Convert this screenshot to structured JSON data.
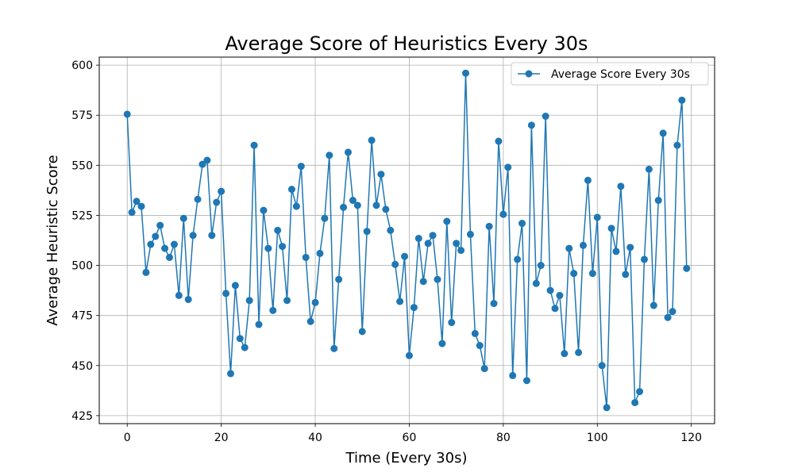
{
  "chart_data": {
    "type": "line",
    "title": "Average Score of Heuristics Every 30s",
    "xlabel": "Time (Every 30s)",
    "ylabel": "Average Heuristic Score",
    "xlim": [
      -5.95,
      124.95
    ],
    "ylim": [
      421,
      604
    ],
    "xticks": [
      0,
      20,
      40,
      60,
      80,
      100,
      120
    ],
    "yticks": [
      425,
      450,
      475,
      500,
      525,
      550,
      575,
      600
    ],
    "xtick_labels": [
      "0",
      "20",
      "40",
      "60",
      "80",
      "100",
      "120"
    ],
    "ytick_labels": [
      "425",
      "450",
      "475",
      "500",
      "525",
      "550",
      "575",
      "600"
    ],
    "grid": true,
    "legend_position": "upper right",
    "marker": "circle",
    "color": "#1f77b4",
    "series": [
      {
        "name": "Average Score Every 30s",
        "x": [
          0,
          1,
          2,
          3,
          4,
          5,
          6,
          7,
          8,
          9,
          10,
          11,
          12,
          13,
          14,
          15,
          16,
          17,
          18,
          19,
          20,
          21,
          22,
          23,
          24,
          25,
          26,
          27,
          28,
          29,
          30,
          31,
          32,
          33,
          34,
          35,
          36,
          37,
          38,
          39,
          40,
          41,
          42,
          43,
          44,
          45,
          46,
          47,
          48,
          49,
          50,
          51,
          52,
          53,
          54,
          55,
          56,
          57,
          58,
          59,
          60,
          61,
          62,
          63,
          64,
          65,
          66,
          67,
          68,
          69,
          70,
          71,
          72,
          73,
          74,
          75,
          76,
          77,
          78,
          79,
          80,
          81,
          82,
          83,
          84,
          85,
          86,
          87,
          88,
          89,
          90,
          91,
          92,
          93,
          94,
          95,
          96,
          97,
          98,
          99,
          100,
          101,
          102,
          103,
          104,
          105,
          106,
          107,
          108,
          109,
          110,
          111,
          112,
          113,
          114,
          115,
          116,
          117,
          118,
          119
        ],
        "y": [
          575.5,
          526.5,
          532,
          529.5,
          496.5,
          510.5,
          514.5,
          520,
          508.5,
          504,
          510.5,
          485,
          523.5,
          483,
          515,
          533,
          550.5,
          552.5,
          515,
          531.5,
          537,
          486,
          446,
          490,
          463.5,
          459,
          482.5,
          560,
          470.5,
          527.5,
          508.5,
          477.5,
          517.5,
          509.5,
          482.5,
          538,
          529.5,
          549.5,
          504,
          472,
          481.5,
          506,
          523.5,
          555,
          458.5,
          493,
          529,
          556.5,
          532.5,
          530,
          467,
          517,
          562.5,
          530,
          545.5,
          528,
          517.5,
          500.5,
          482,
          504.5,
          455,
          479,
          513.5,
          492,
          511,
          515,
          493,
          461,
          522,
          471.5,
          511,
          507.5,
          596,
          515.5,
          466,
          460,
          448.5,
          519.5,
          481,
          562,
          525.5,
          549,
          445,
          503,
          521,
          442.5,
          570,
          491,
          500,
          574.5,
          487.5,
          478.5,
          485,
          456,
          508.5,
          496,
          456.5,
          510,
          542.5,
          496,
          524,
          450,
          429,
          518.5,
          507,
          539.5,
          495.5,
          509,
          431.5,
          437,
          503,
          548,
          480,
          532.5,
          566,
          474,
          477,
          560,
          582.5,
          498.5
        ]
      }
    ]
  }
}
